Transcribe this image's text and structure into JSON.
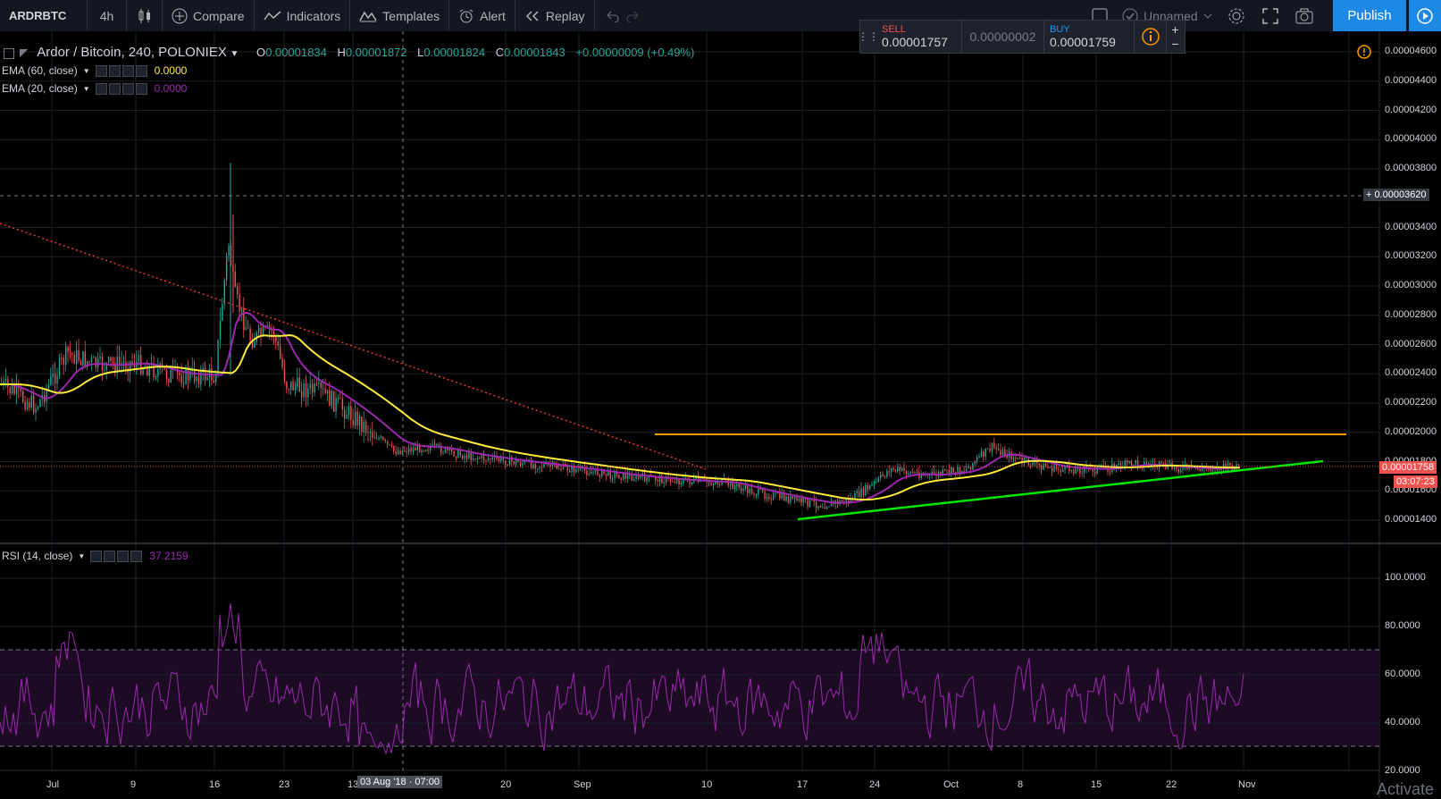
{
  "toolbar": {
    "symbol": "ARDRBTC",
    "interval": "4h",
    "compare": "Compare",
    "indicators": "Indicators",
    "templates": "Templates",
    "alert": "Alert",
    "replay": "Replay",
    "layout_name": "Unnamed",
    "publish": "Publish"
  },
  "trade_panel": {
    "sell_label": "SELL",
    "sell_price": "0.00001757",
    "spread": "0.00000002",
    "buy_label": "BUY",
    "buy_price": "0.00001759",
    "plus": "+",
    "minus": "−"
  },
  "legend": {
    "title": "Ardor / Bitcoin, 240, POLONIEX",
    "o_label": "O",
    "o": "0.00001834",
    "h_label": "H",
    "h": "0.00001872",
    "l_label": "L",
    "l": "0.00001824",
    "c_label": "C",
    "c": "0.00001843",
    "change": "+0.00000009 (+0.49%)"
  },
  "indicators": [
    {
      "name": "EMA (60, close)",
      "value": "0.0000",
      "color": "#ffeb3b"
    },
    {
      "name": "EMA (20, close)",
      "value": "0.0000",
      "color": "#9c27b0"
    }
  ],
  "rsi": {
    "name": "RSI (14, close)",
    "value": "37.2159",
    "color": "#9c27b0"
  },
  "price_axis": {
    "labels": [
      "0.00004600",
      "0.00004400",
      "0.00004200",
      "0.00004000",
      "0.00003800",
      "0.00003620",
      "0.00003400",
      "0.00003200",
      "0.00003000",
      "0.00002800",
      "0.00002600",
      "0.00002400",
      "0.00002200",
      "0.00002000",
      "0.00001800",
      "0.00001600",
      "0.00001400"
    ],
    "last_price": "0.00001758",
    "countdown": "03:07:23",
    "crosshair_price": "0.00003620"
  },
  "rsi_axis": {
    "labels": [
      "100.0000",
      "80.0000",
      "60.0000",
      "40.0000",
      "20.0000"
    ]
  },
  "time_axis": {
    "labels": [
      "Jul",
      "9",
      "16",
      "23",
      "13",
      "20",
      "Sep",
      "10",
      "17",
      "24",
      "Oct",
      "8",
      "15",
      "22",
      "Nov"
    ],
    "crosshair_label": "03 Aug '18 · 07:00"
  },
  "watermark": "Activate",
  "colors": {
    "up": "#26a69a",
    "down": "#ef5350",
    "ema60": "#ffeb3b",
    "ema20": "#9c27b0",
    "support": "#00e600",
    "resistance": "#ff9800",
    "trend": "#e53935",
    "rsi": "#9c27b0"
  }
}
